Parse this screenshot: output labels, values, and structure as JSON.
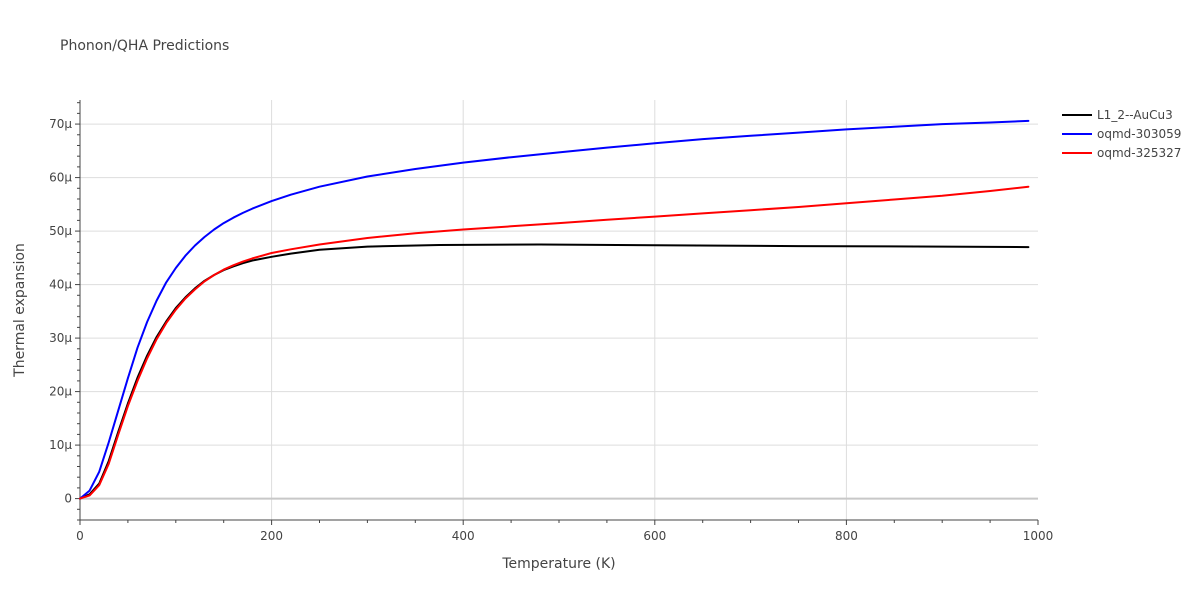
{
  "chart_data": {
    "type": "line",
    "title": "Phonon/QHA Predictions",
    "xlabel": "Temperature (K)",
    "ylabel": "Thermal expansion",
    "xlim": [
      0,
      1000
    ],
    "ylim": [
      -4,
      74.5
    ],
    "x_ticks": [
      0,
      200,
      400,
      600,
      800,
      1000
    ],
    "y_ticks": [
      0,
      10,
      20,
      30,
      40,
      50,
      60,
      70
    ],
    "x_tick_labels": [
      "0",
      "200",
      "400",
      "600",
      "800",
      "1000"
    ],
    "y_tick_labels": [
      "0",
      "10μ",
      "20μ",
      "30μ",
      "40μ",
      "50μ",
      "60μ",
      "70μ"
    ],
    "y_unit_scale": 1e-06,
    "grid": true,
    "legend_position": "top-right",
    "series": [
      {
        "name": "L1_2--AuCu3",
        "color": "#000000",
        "x": [
          0,
          10,
          20,
          30,
          40,
          50,
          60,
          70,
          80,
          90,
          100,
          110,
          120,
          130,
          140,
          150,
          160,
          170,
          180,
          200,
          220,
          250,
          300,
          375,
          480,
          600,
          750,
          900,
          990
        ],
        "y": [
          0,
          0.8,
          2.8,
          7,
          12.5,
          17.8,
          22.6,
          26.7,
          30.2,
          33.1,
          35.6,
          37.6,
          39.3,
          40.7,
          41.8,
          42.7,
          43.4,
          44.0,
          44.5,
          45.2,
          45.8,
          46.5,
          47.1,
          47.4,
          47.5,
          47.35,
          47.2,
          47.1,
          47.0
        ]
      },
      {
        "name": "oqmd-303059",
        "color": "#0000ff",
        "x": [
          0,
          10,
          20,
          30,
          40,
          50,
          60,
          70,
          80,
          90,
          100,
          110,
          120,
          130,
          140,
          150,
          160,
          170,
          180,
          200,
          220,
          250,
          300,
          350,
          400,
          450,
          500,
          550,
          600,
          650,
          700,
          750,
          800,
          850,
          900,
          950,
          990
        ],
        "y": [
          0,
          1.5,
          5,
          10.5,
          16.5,
          22.5,
          28.2,
          33.0,
          37.0,
          40.4,
          43.1,
          45.4,
          47.3,
          48.9,
          50.3,
          51.5,
          52.5,
          53.4,
          54.2,
          55.6,
          56.8,
          58.3,
          60.2,
          61.6,
          62.8,
          63.8,
          64.7,
          65.6,
          66.4,
          67.2,
          67.8,
          68.4,
          69.0,
          69.5,
          70.0,
          70.3,
          70.6
        ]
      },
      {
        "name": "oqmd-325327",
        "color": "#ff0000",
        "x": [
          0,
          10,
          20,
          30,
          40,
          50,
          60,
          70,
          80,
          90,
          100,
          110,
          120,
          130,
          140,
          150,
          160,
          170,
          180,
          200,
          220,
          250,
          300,
          350,
          400,
          450,
          500,
          550,
          600,
          650,
          700,
          750,
          800,
          850,
          900,
          950,
          990
        ],
        "y": [
          0,
          0.6,
          2.5,
          6.5,
          12.0,
          17.3,
          22.0,
          26.2,
          29.8,
          32.8,
          35.3,
          37.4,
          39.1,
          40.6,
          41.8,
          42.8,
          43.6,
          44.3,
          44.9,
          45.9,
          46.6,
          47.5,
          48.7,
          49.6,
          50.3,
          50.9,
          51.5,
          52.1,
          52.7,
          53.3,
          53.9,
          54.5,
          55.2,
          55.9,
          56.6,
          57.5,
          58.3
        ]
      }
    ]
  }
}
